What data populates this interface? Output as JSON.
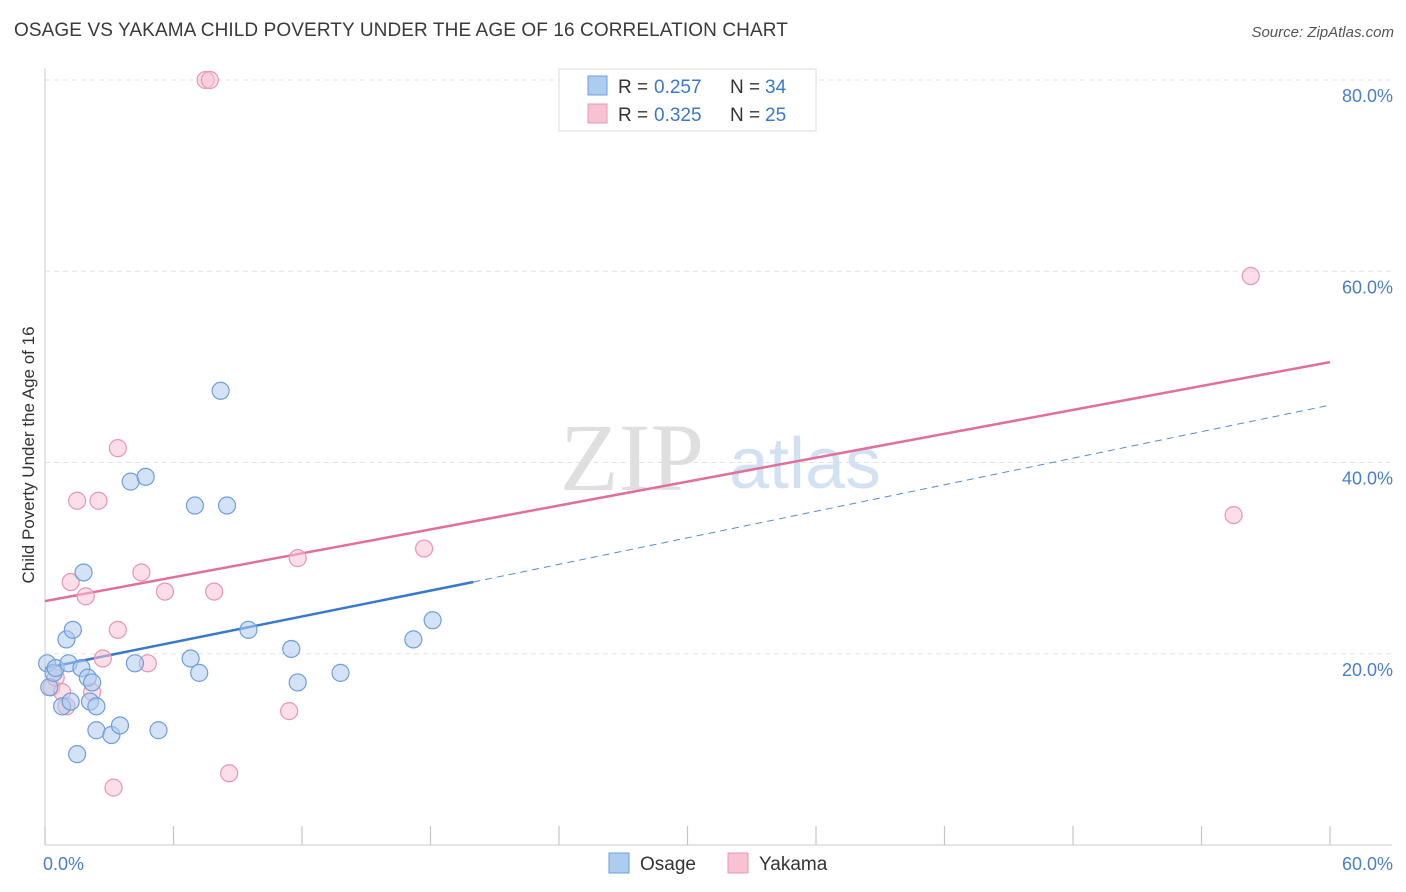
{
  "title": "OSAGE VS YAKAMA CHILD POVERTY UNDER THE AGE OF 16 CORRELATION CHART",
  "source": "Source: ZipAtlas.com",
  "watermark": {
    "zip": "ZIP",
    "atlas": "atlas"
  },
  "colors": {
    "osage_fill": "#aecbf0",
    "osage_stroke": "#6f9fd8",
    "osage_line": "#3a78cc",
    "yakama_fill": "#f7c3d3",
    "yakama_stroke": "#e897b0",
    "yakama_line": "#e0709a",
    "axis_label": "#4a7fc7",
    "grid": "#e3e3e3"
  },
  "legend": {
    "rows": [
      {
        "r_label": "R = ",
        "r_value": "0.257",
        "n_label": "N = ",
        "n_value": "34"
      },
      {
        "r_label": "R = ",
        "r_value": "0.325",
        "n_label": "N = ",
        "n_value": "25"
      }
    ],
    "bottom": [
      "Osage",
      "Yakama"
    ]
  },
  "chart_data": {
    "type": "scatter",
    "title": "OSAGE VS YAKAMA CHILD POVERTY UNDER THE AGE OF 16 CORRELATION CHART",
    "xlabel": "",
    "ylabel": "Child Poverty Under the Age of 16",
    "xlim": [
      0,
      60
    ],
    "ylim": [
      0,
      80
    ],
    "x_ticks": [
      0,
      60
    ],
    "x_tick_labels": [
      "0.0%",
      "60.0%"
    ],
    "y_ticks": [
      20,
      40,
      60,
      80
    ],
    "y_tick_labels": [
      "20.0%",
      "40.0%",
      "60.0%",
      "80.0%"
    ],
    "grid": true,
    "legend_position": "top-center",
    "series": [
      {
        "name": "Osage",
        "r": 0.257,
        "n": 34,
        "points": [
          [
            0.1,
            19.0
          ],
          [
            0.2,
            16.5
          ],
          [
            0.4,
            18.0
          ],
          [
            0.5,
            18.5
          ],
          [
            1.0,
            21.5
          ],
          [
            1.1,
            19.0
          ],
          [
            1.3,
            22.5
          ],
          [
            1.8,
            28.5
          ],
          [
            0.8,
            14.5
          ],
          [
            1.2,
            15.0
          ],
          [
            1.7,
            18.5
          ],
          [
            2.0,
            17.5
          ],
          [
            2.2,
            17.0
          ],
          [
            2.1,
            15.0
          ],
          [
            2.4,
            14.5
          ],
          [
            2.4,
            12.0
          ],
          [
            1.5,
            9.5
          ],
          [
            3.1,
            11.5
          ],
          [
            3.5,
            12.5
          ],
          [
            4.0,
            38.0
          ],
          [
            4.2,
            19.0
          ],
          [
            4.7,
            38.5
          ],
          [
            5.3,
            12.0
          ],
          [
            6.8,
            19.5
          ],
          [
            7.0,
            35.5
          ],
          [
            7.2,
            18.0
          ],
          [
            8.2,
            47.5
          ],
          [
            8.5,
            35.5
          ],
          [
            9.5,
            22.5
          ],
          [
            11.5,
            20.5
          ],
          [
            11.8,
            17.0
          ],
          [
            13.8,
            18.0
          ],
          [
            17.2,
            21.5
          ],
          [
            18.1,
            23.5
          ]
        ],
        "trend": {
          "solid": [
            [
              0,
              18.5
            ],
            [
              20,
              27.5
            ]
          ],
          "dashed": [
            [
              20,
              27.5
            ],
            [
              60,
              46.0
            ]
          ]
        }
      },
      {
        "name": "Yakama",
        "r": 0.325,
        "n": 25,
        "points": [
          [
            0.3,
            16.5
          ],
          [
            0.5,
            17.5
          ],
          [
            0.8,
            16.0
          ],
          [
            1.0,
            14.5
          ],
          [
            1.2,
            27.5
          ],
          [
            1.5,
            36.0
          ],
          [
            1.9,
            26.0
          ],
          [
            2.2,
            16.0
          ],
          [
            2.5,
            36.0
          ],
          [
            2.7,
            19.5
          ],
          [
            3.2,
            6.0
          ],
          [
            3.4,
            22.5
          ],
          [
            3.4,
            41.5
          ],
          [
            4.5,
            28.5
          ],
          [
            4.8,
            19.0
          ],
          [
            5.6,
            26.5
          ],
          [
            7.5,
            80.0
          ],
          [
            7.7,
            80.0
          ],
          [
            7.9,
            26.5
          ],
          [
            8.6,
            7.5
          ],
          [
            11.4,
            14.0
          ],
          [
            11.8,
            30.0
          ],
          [
            17.7,
            31.0
          ],
          [
            55.5,
            34.5
          ],
          [
            56.3,
            59.5
          ]
        ],
        "trend": {
          "solid": [
            [
              0,
              25.5
            ],
            [
              60,
              50.5
            ]
          ]
        }
      }
    ]
  }
}
